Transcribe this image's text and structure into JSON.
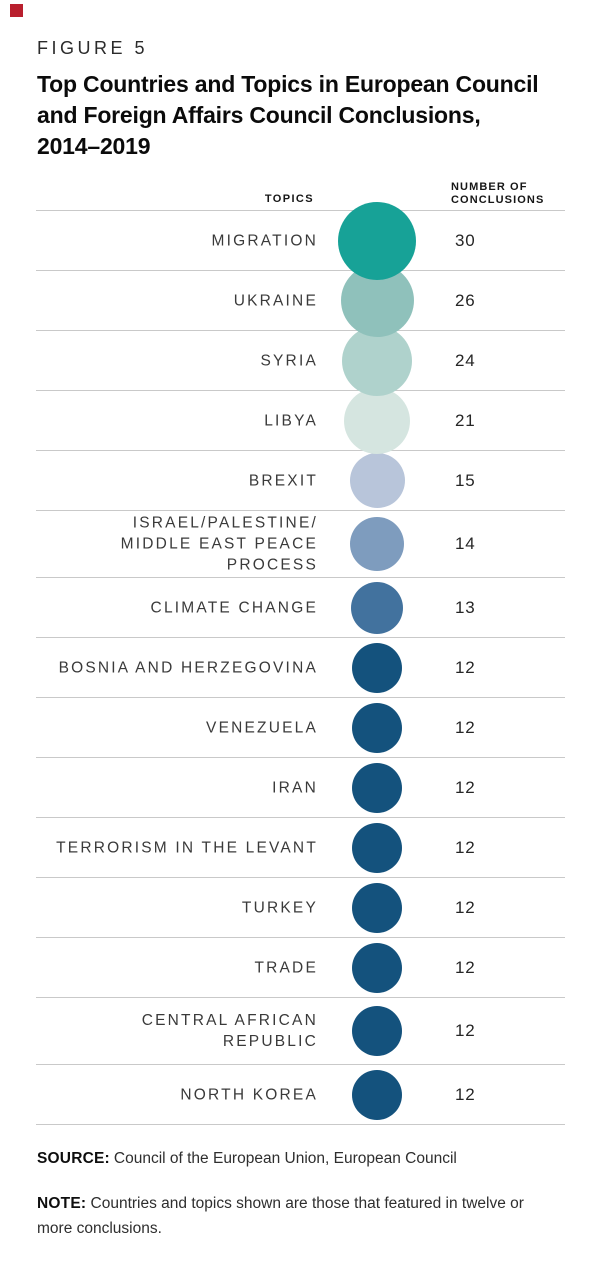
{
  "brand": {
    "square_color": "#b91f2e"
  },
  "figure": {
    "label": "FIGURE 5",
    "title": "Top Countries and Topics in European Council\nand Foreign Affairs Council Conclusions,\n2014–2019"
  },
  "columns": {
    "topics": "TOPICS",
    "number": "NUMBER OF\nCONCLUSIONS"
  },
  "chart_data": {
    "type": "bubble",
    "title": "Top Countries and Topics in European Council and Foreign Affairs Council Conclusions, 2014–2019",
    "value_label": "Number of Conclusions",
    "legend_position": "none",
    "bubble_scale": 14.3,
    "rows": [
      {
        "label": "MIGRATION",
        "value": 30,
        "color": "#17A297"
      },
      {
        "label": "UKRAINE",
        "value": 26,
        "color": "#8FC1BB"
      },
      {
        "label": "SYRIA",
        "value": 24,
        "color": "#AFD2CC"
      },
      {
        "label": "LIBYA",
        "value": 21,
        "color": "#D5E5E0"
      },
      {
        "label": "BREXIT",
        "value": 15,
        "color": "#B8C5DA"
      },
      {
        "label": "ISRAEL/PALESTINE/\nMIDDLE EAST PEACE PROCESS",
        "value": 14,
        "color": "#7E9CBE"
      },
      {
        "label": "CLIMATE CHANGE",
        "value": 13,
        "color": "#42729E"
      },
      {
        "label": "BOSNIA AND HERZEGOVINA",
        "value": 12,
        "color": "#14527D"
      },
      {
        "label": "VENEZUELA",
        "value": 12,
        "color": "#14527D"
      },
      {
        "label": "IRAN",
        "value": 12,
        "color": "#14527D"
      },
      {
        "label": "TERRORISM IN THE LEVANT",
        "value": 12,
        "color": "#14527D"
      },
      {
        "label": "TURKEY",
        "value": 12,
        "color": "#14527D"
      },
      {
        "label": "TRADE",
        "value": 12,
        "color": "#14527D"
      },
      {
        "label": "CENTRAL AFRICAN\nREPUBLIC",
        "value": 12,
        "color": "#14527D"
      },
      {
        "label": "NORTH KOREA",
        "value": 12,
        "color": "#14527D"
      }
    ]
  },
  "footer": {
    "source_label": "SOURCE:",
    "source_text": "Council of the European Union, European Council",
    "note_label": "NOTE:",
    "note_text": "Countries and topics shown are those that featured in twelve or\nmore conclusions."
  }
}
